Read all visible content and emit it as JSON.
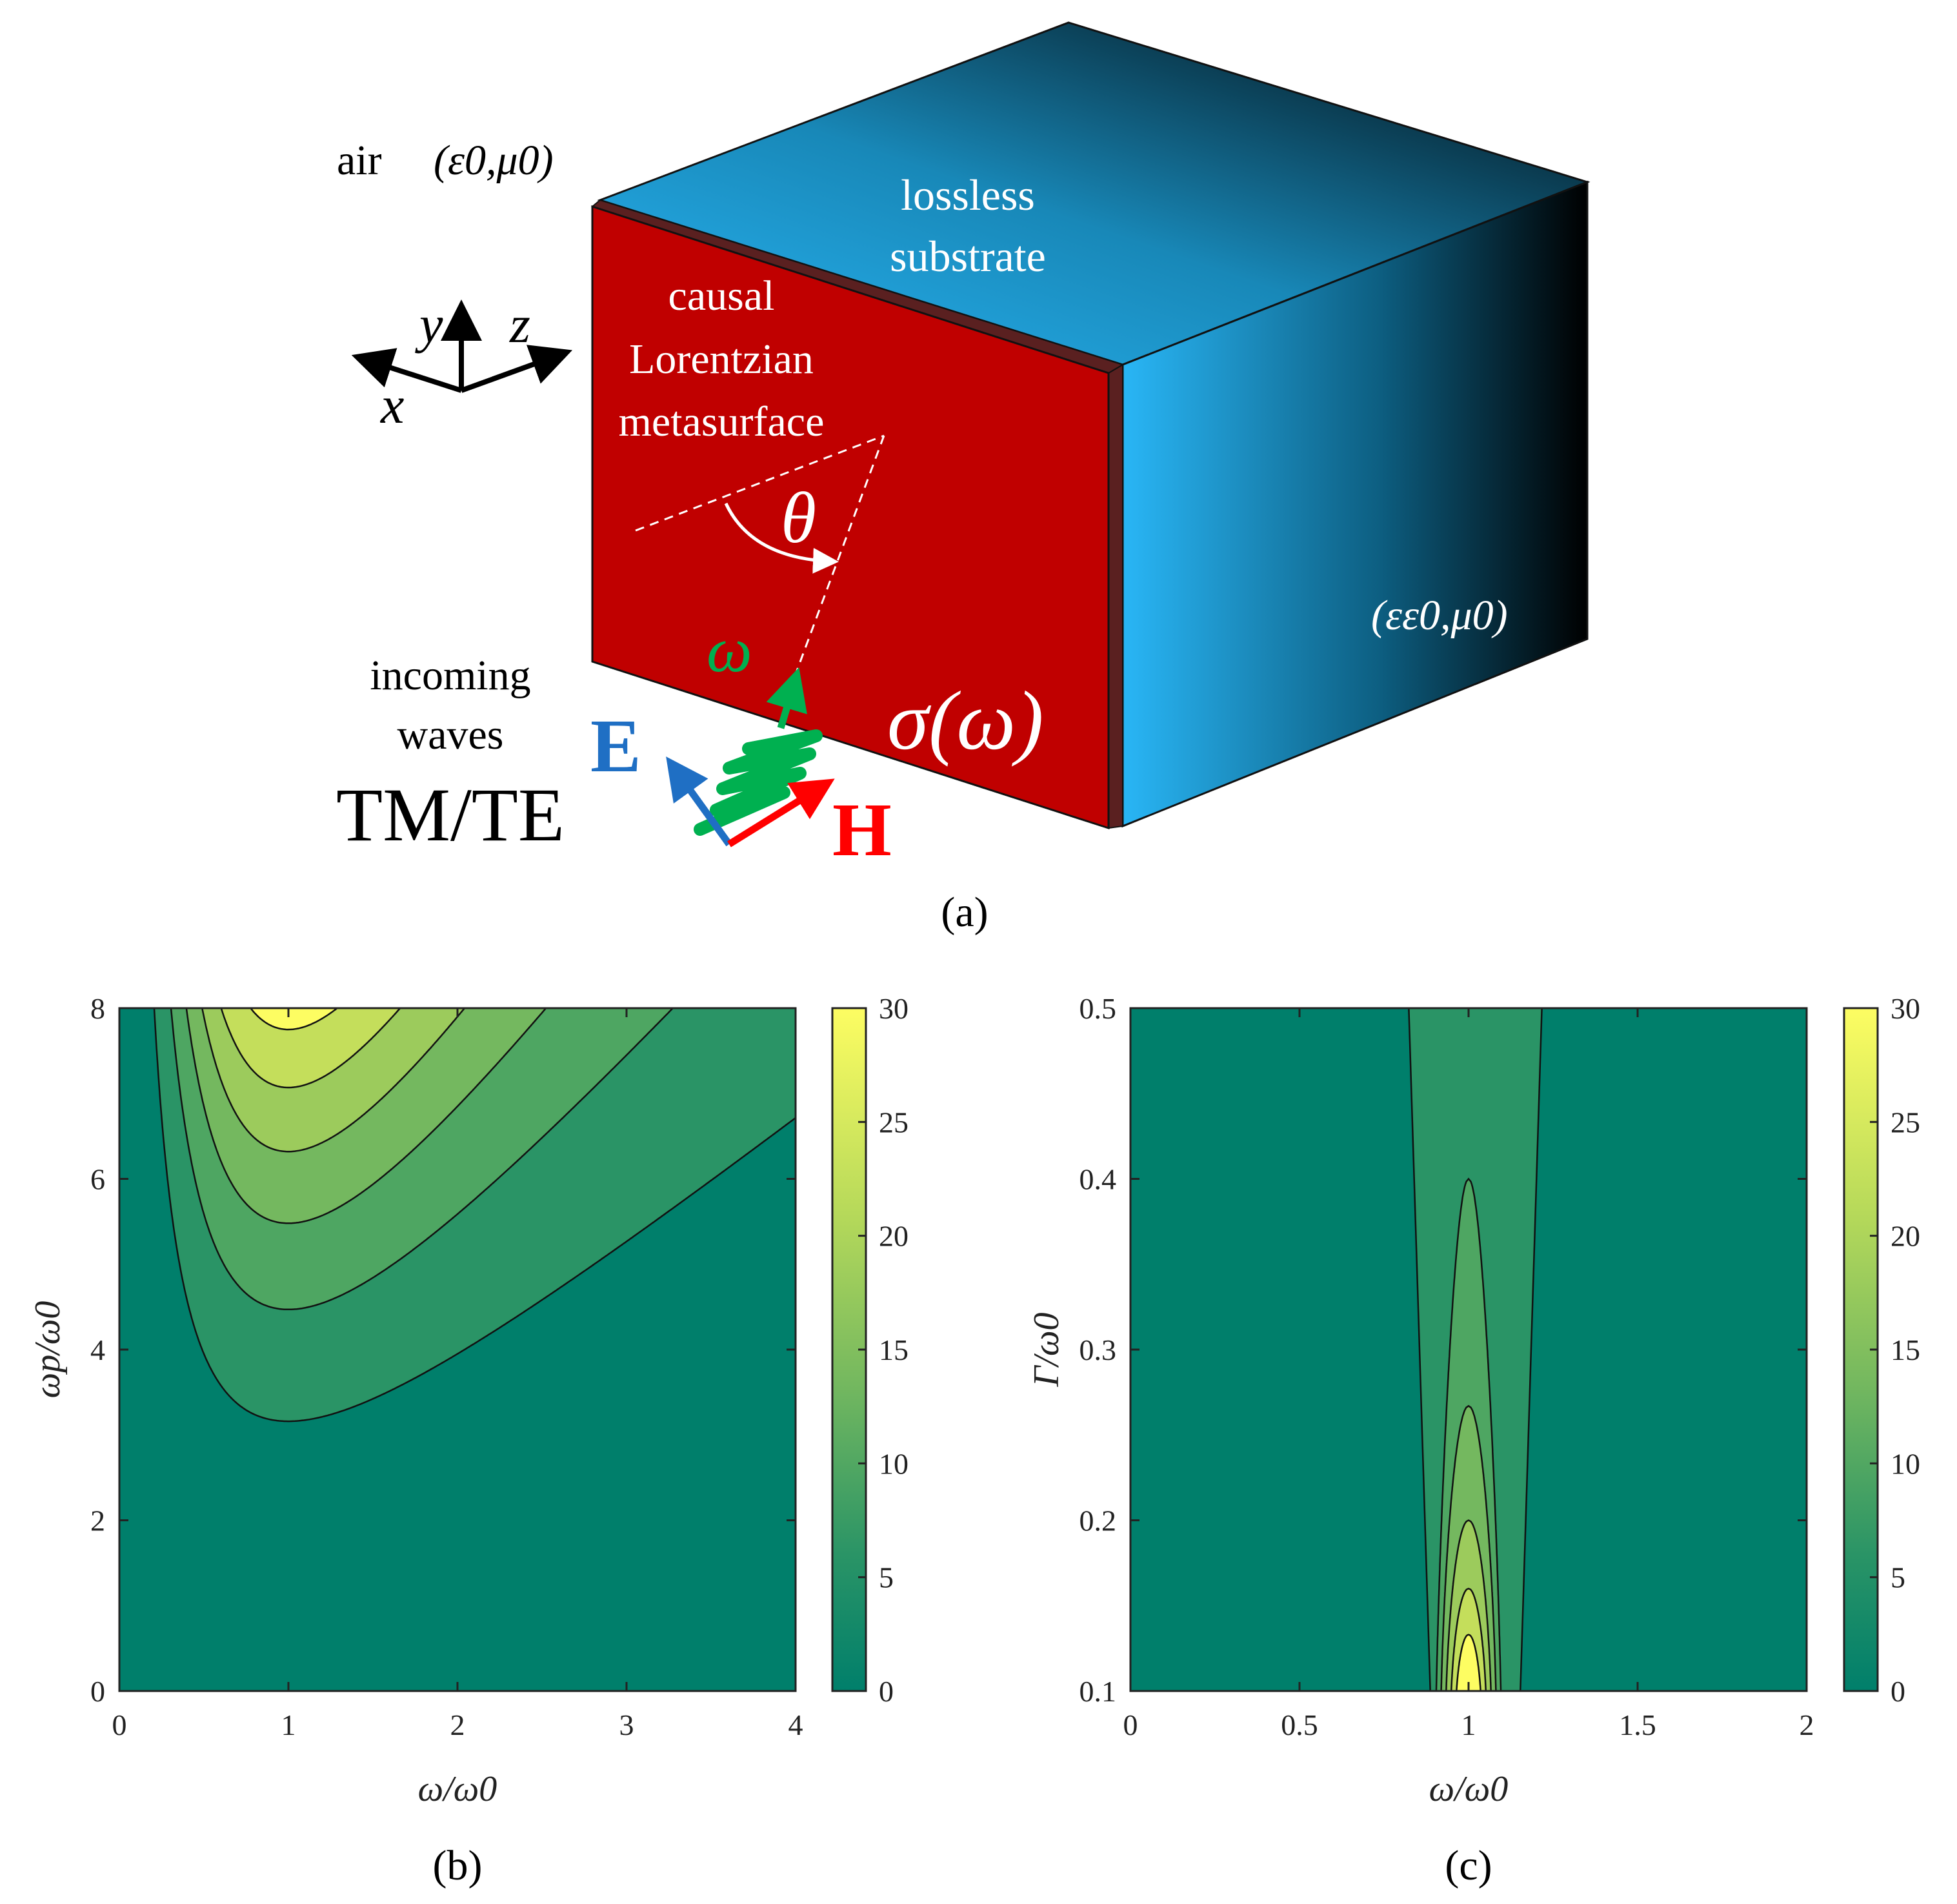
{
  "panel_a": {
    "air_label": "air",
    "air_params": "(ε0,μ0)",
    "substrate_label_1": "lossless",
    "substrate_label_2": "substrate",
    "metasurface_label_1": "causal",
    "metasurface_label_2": "Lorentzian",
    "metasurface_label_3": "metasurface",
    "substrate_params": "(εε0,μ0)",
    "conductivity_label": "σ(ω)",
    "theta_label": "θ",
    "omega_label": "ω",
    "incoming_1": "incoming",
    "incoming_2": "waves",
    "polarization": "TM/TE",
    "e_label": "E",
    "h_label": "H",
    "axis_x": "x",
    "axis_y": "y",
    "axis_z": "z",
    "caption": "(a)",
    "colors": {
      "metasurface": "#c00000",
      "metasurface_edge": "#5a2020",
      "substrate_light": "#29b6f6",
      "substrate_dark": "#000000",
      "omega_green": "#00b050",
      "e_blue": "#1f6fc4",
      "h_red": "#ff0000"
    }
  },
  "chart_data": [
    {
      "type": "contour",
      "panel": "(b)",
      "xlabel": "ω/ω0",
      "ylabel": "ωp/ω0",
      "xlim": [
        0,
        4
      ],
      "ylim": [
        0,
        8
      ],
      "x_ticks": [
        "0",
        "1",
        "2",
        "3",
        "4"
      ],
      "y_ticks": [
        "0",
        "2",
        "4",
        "6",
        "8"
      ],
      "contour_levels": [
        5,
        10,
        15,
        20,
        25,
        30
      ],
      "contour_minima": [
        {
          "level": 5,
          "x": 1,
          "y": 3.16
        },
        {
          "level": 10,
          "x": 1,
          "y": 4.47
        },
        {
          "level": 15,
          "x": 1,
          "y": 5.48
        },
        {
          "level": 20,
          "x": 1,
          "y": 6.32
        },
        {
          "level": 25,
          "x": 1,
          "y": 7.07
        },
        {
          "level": 30,
          "x": 1,
          "y": 7.75
        }
      ],
      "colorbar": {
        "min": 0,
        "max": 30,
        "ticks": [
          "0",
          "5",
          "10",
          "15",
          "20",
          "25",
          "30"
        ]
      },
      "colors": {
        "low": "#007f6b",
        "high": "#fdfd62"
      }
    },
    {
      "type": "contour",
      "panel": "(c)",
      "xlabel": "ω/ω0",
      "ylabel": "Γ/ω0",
      "xlim": [
        0,
        2
      ],
      "ylim": [
        0.1,
        0.5
      ],
      "x_ticks": [
        "0",
        "0.5",
        "1",
        "1.5",
        "2"
      ],
      "y_ticks": [
        "0.1",
        "0.2",
        "0.3",
        "0.4",
        "0.5"
      ],
      "contour_levels": [
        5,
        10,
        15,
        20,
        25,
        30
      ],
      "contour_tops": [
        {
          "level": 5,
          "gamma": 0.5
        },
        {
          "level": 10,
          "gamma": 0.4
        },
        {
          "level": 15,
          "gamma": 0.267
        },
        {
          "level": 20,
          "gamma": 0.2
        },
        {
          "level": 25,
          "gamma": 0.16
        },
        {
          "level": 30,
          "gamma": 0.133
        }
      ],
      "colorbar": {
        "min": 0,
        "max": 30,
        "ticks": [
          "0",
          "5",
          "10",
          "15",
          "20",
          "25",
          "30"
        ]
      },
      "colors": {
        "low": "#007f6b",
        "high": "#fdfd62"
      }
    }
  ]
}
